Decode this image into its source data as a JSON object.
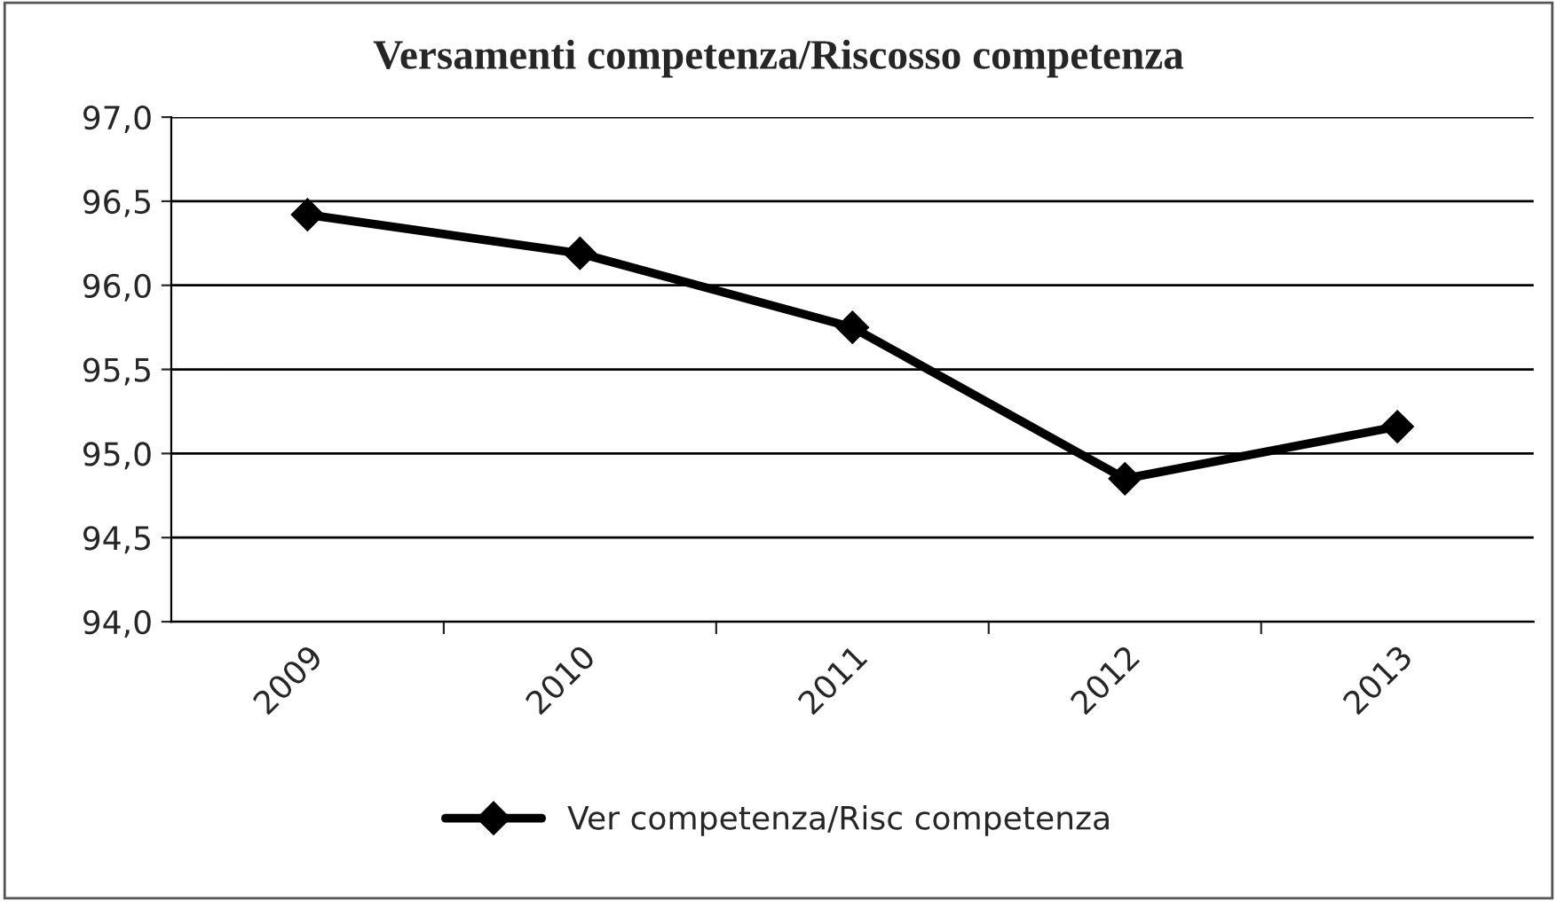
{
  "chart_data": {
    "type": "line",
    "title": "Versamenti competenza/Riscosso competenza",
    "categories": [
      "2009",
      "2010",
      "2011",
      "2012",
      "2013"
    ],
    "series": [
      {
        "name": "Ver competenza/Risc competenza",
        "color": "#000000",
        "values": [
          96.42,
          96.19,
          95.75,
          94.85,
          95.16
        ]
      }
    ],
    "ylim": [
      94.0,
      97.0
    ],
    "yticks": [
      {
        "value": 94.0,
        "label": "94,0"
      },
      {
        "value": 94.5,
        "label": "94,5"
      },
      {
        "value": 95.0,
        "label": "95,0"
      },
      {
        "value": 95.5,
        "label": "95,5"
      },
      {
        "value": 96.0,
        "label": "96,0"
      },
      {
        "value": 96.5,
        "label": "96,5"
      },
      {
        "value": 97.0,
        "label": "97,0"
      }
    ],
    "grid": "y",
    "legend": "bottom",
    "marker": "diamond",
    "line_style": "solid"
  }
}
